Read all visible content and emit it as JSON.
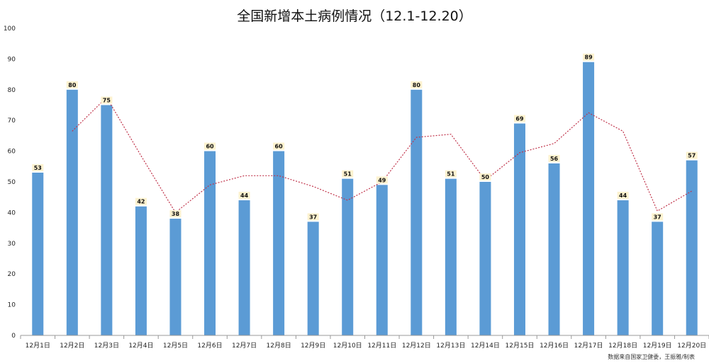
{
  "chart_data": {
    "type": "bar",
    "title": "全国新增本土病例情况（12.1-12.20）",
    "categories": [
      "12月1日",
      "12月2日",
      "12月3日",
      "12月4日",
      "12月5日",
      "12月6日",
      "12月7日",
      "12月8日",
      "12月9日",
      "12月10日",
      "12月11日",
      "12月12日",
      "12月13日",
      "12月14日",
      "12月15日",
      "12月16日",
      "12月17日",
      "12月18日",
      "12月19日",
      "12月20日"
    ],
    "values": [
      53,
      80,
      75,
      42,
      38,
      60,
      44,
      60,
      37,
      51,
      49,
      80,
      51,
      50,
      69,
      56,
      89,
      44,
      37,
      57
    ],
    "trendline": {
      "type": "moving-average",
      "period": 2,
      "start_index": 1,
      "style": "dotted",
      "color": "#c0334a"
    },
    "ylim": [
      0,
      100
    ],
    "yticks": [
      0,
      10,
      20,
      30,
      40,
      50,
      60,
      70,
      80,
      90,
      100
    ],
    "xlabel": "",
    "ylabel": "",
    "grid": false,
    "bar_color": "#5b9bd5",
    "label_box_color": "#fdf2cf"
  },
  "source_note": "数据来自国家卫健委，王振雅/制表"
}
